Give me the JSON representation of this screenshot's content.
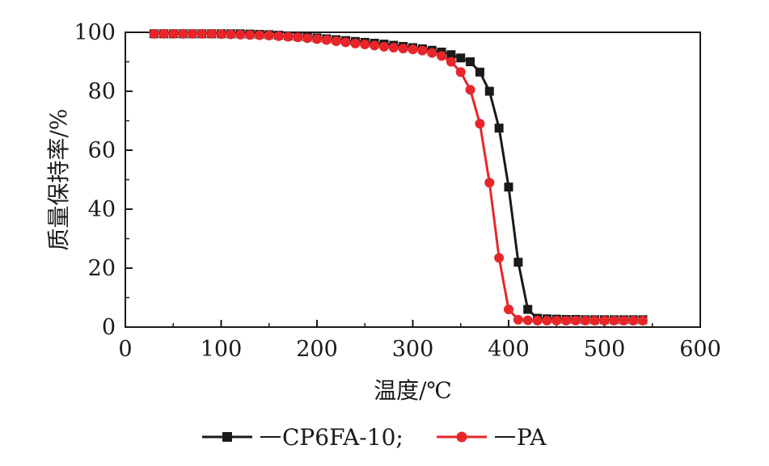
{
  "chart_data": {
    "type": "line",
    "xlabel": "温度/℃",
    "ylabel": "质量保持率/%",
    "xlim": [
      0,
      600
    ],
    "ylim": [
      0,
      100
    ],
    "xticks": [
      "0",
      "100",
      "200",
      "300",
      "400",
      "500",
      "600"
    ],
    "yticks": [
      "0",
      "20",
      "40",
      "60",
      "80",
      "100"
    ],
    "grid": false,
    "legend_position": "bottom",
    "series": [
      {
        "name": "CP6FA-10;",
        "color": "#1a1a1a",
        "marker": "square",
        "x": [
          30,
          40,
          50,
          60,
          70,
          80,
          90,
          100,
          110,
          120,
          130,
          140,
          150,
          160,
          170,
          180,
          190,
          200,
          210,
          220,
          230,
          240,
          250,
          260,
          270,
          280,
          290,
          300,
          310,
          320,
          330,
          340,
          350,
          360,
          370,
          380,
          390,
          400,
          410,
          420,
          430,
          440,
          450,
          460,
          470,
          480,
          490,
          500,
          510,
          520,
          530,
          540
        ],
        "y": [
          99.5,
          99.5,
          99.5,
          99.5,
          99.5,
          99.5,
          99.5,
          99.5,
          99.5,
          99.5,
          99.4,
          99.3,
          99.2,
          99.0,
          98.8,
          98.6,
          98.4,
          98.1,
          97.8,
          97.5,
          97.2,
          96.9,
          96.6,
          96.3,
          96.0,
          95.6,
          95.2,
          94.8,
          94.4,
          93.9,
          93.3,
          92.4,
          91.3,
          90.0,
          86.5,
          80.0,
          67.5,
          47.5,
          22.0,
          6.0,
          3.0,
          2.8,
          2.7,
          2.6,
          2.6,
          2.5,
          2.5,
          2.5,
          2.5,
          2.5,
          2.5,
          2.5
        ]
      },
      {
        "name": "PA",
        "color": "#e8262a",
        "marker": "circle",
        "x": [
          30,
          40,
          50,
          60,
          70,
          80,
          90,
          100,
          110,
          120,
          130,
          140,
          150,
          160,
          170,
          180,
          190,
          200,
          210,
          220,
          230,
          240,
          250,
          260,
          270,
          280,
          290,
          300,
          310,
          320,
          330,
          340,
          350,
          360,
          370,
          380,
          390,
          400,
          410,
          420,
          430,
          440,
          450,
          460,
          470,
          480,
          490,
          500,
          510,
          520,
          530,
          540
        ],
        "y": [
          99.5,
          99.5,
          99.5,
          99.5,
          99.5,
          99.5,
          99.5,
          99.4,
          99.3,
          99.2,
          99.1,
          99.0,
          98.9,
          98.7,
          98.5,
          98.3,
          98.0,
          97.7,
          97.4,
          97.0,
          96.6,
          96.2,
          95.9,
          95.5,
          95.1,
          94.8,
          94.5,
          94.2,
          93.8,
          93.0,
          92.0,
          90.0,
          86.5,
          80.5,
          69.0,
          49.0,
          23.5,
          6.0,
          2.5,
          2.3,
          2.2,
          2.2,
          2.2,
          2.2,
          2.2,
          2.2,
          2.2,
          2.2,
          2.2,
          2.2,
          2.2,
          2.2
        ]
      }
    ]
  }
}
